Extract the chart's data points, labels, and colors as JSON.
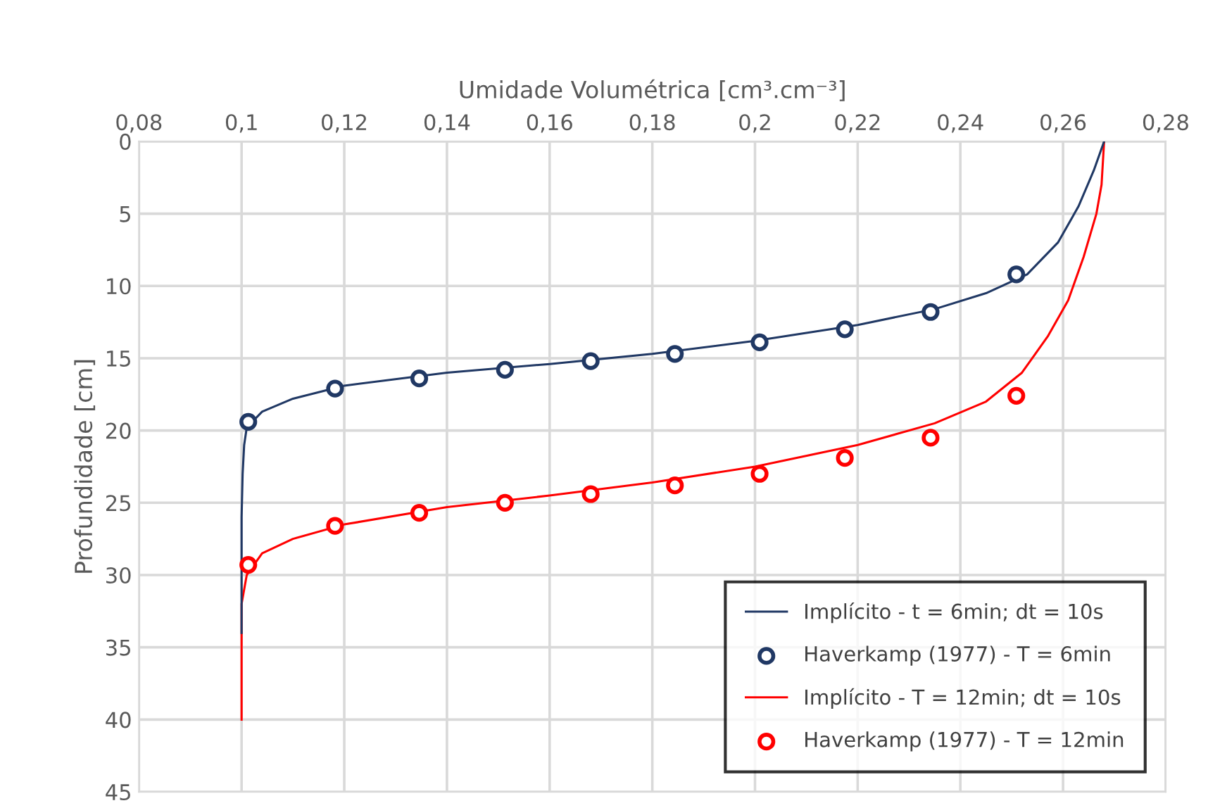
{
  "chart_data": {
    "type": "line",
    "xlabel": "Umidade Volumétrica [cm³.cm⁻³]",
    "ylabel": "Profundidade [cm]",
    "xlim": [
      0.08,
      0.28
    ],
    "xticks": [
      {
        "value": 0.08,
        "label": "0,08"
      },
      {
        "value": 0.1,
        "label": "0,1"
      },
      {
        "value": 0.12,
        "label": "0,12"
      },
      {
        "value": 0.14,
        "label": "0,14"
      },
      {
        "value": 0.16,
        "label": "0,16"
      },
      {
        "value": 0.18,
        "label": "0,18"
      },
      {
        "value": 0.2,
        "label": "0,2"
      },
      {
        "value": 0.22,
        "label": "0,22"
      },
      {
        "value": 0.24,
        "label": "0,24"
      },
      {
        "value": 0.26,
        "label": "0,26"
      },
      {
        "value": 0.28,
        "label": "0,28"
      }
    ],
    "ylim": [
      45,
      0
    ],
    "yticks": [
      0,
      5,
      10,
      15,
      20,
      25,
      30,
      35,
      40,
      45
    ],
    "grid": true,
    "legend": "bottom right",
    "series": [
      {
        "name": "Implícito - t = 6min; dt = 10s",
        "color": "#203864",
        "marker": "none",
        "line_style": "solid",
        "x": [
          0.268,
          0.266,
          0.263,
          0.259,
          0.253,
          0.245,
          0.235,
          0.22,
          0.2,
          0.18,
          0.16,
          0.14,
          0.12,
          0.11,
          0.104,
          0.101,
          0.1005,
          0.1002,
          0.1,
          0.1
        ],
        "values": [
          0,
          2,
          4.5,
          7,
          9.2,
          10.5,
          11.6,
          12.7,
          13.8,
          14.7,
          15.4,
          16.0,
          16.9,
          17.8,
          18.7,
          19.8,
          21,
          23,
          26,
          34
        ]
      },
      {
        "name": "Haverkamp (1977) - T = 6min",
        "type": "scatter",
        "color": "#203864",
        "marker": "circle",
        "x": [
          0.1013,
          0.1182,
          0.1346,
          0.1513,
          0.168,
          0.1844,
          0.2009,
          0.2175,
          0.2342,
          0.2509
        ],
        "values": [
          19.4,
          17.1,
          16.4,
          15.8,
          15.2,
          14.7,
          13.9,
          13.0,
          11.8,
          9.2
        ]
      },
      {
        "name": "Implícito - T = 12min; dt = 10s",
        "color": "#ff0000",
        "marker": "none",
        "line_style": "solid",
        "x": [
          0.268,
          0.2675,
          0.2665,
          0.264,
          0.261,
          0.257,
          0.252,
          0.245,
          0.235,
          0.22,
          0.2,
          0.18,
          0.16,
          0.14,
          0.12,
          0.11,
          0.104,
          0.101,
          0.1,
          0.1
        ],
        "values": [
          0,
          3,
          5,
          8,
          11,
          13.5,
          16,
          18,
          19.5,
          21,
          22.5,
          23.6,
          24.5,
          25.3,
          26.5,
          27.5,
          28.5,
          30,
          32,
          40
        ]
      },
      {
        "name": "Haverkamp (1977) - T = 12min",
        "type": "scatter",
        "color": "#ff0000",
        "marker": "circle",
        "x": [
          0.1013,
          0.1182,
          0.1346,
          0.1513,
          0.168,
          0.1844,
          0.2009,
          0.2175,
          0.2342,
          0.2509
        ],
        "values": [
          29.3,
          26.6,
          25.7,
          25.0,
          24.4,
          23.8,
          23.0,
          21.9,
          20.5,
          17.6
        ]
      }
    ]
  }
}
